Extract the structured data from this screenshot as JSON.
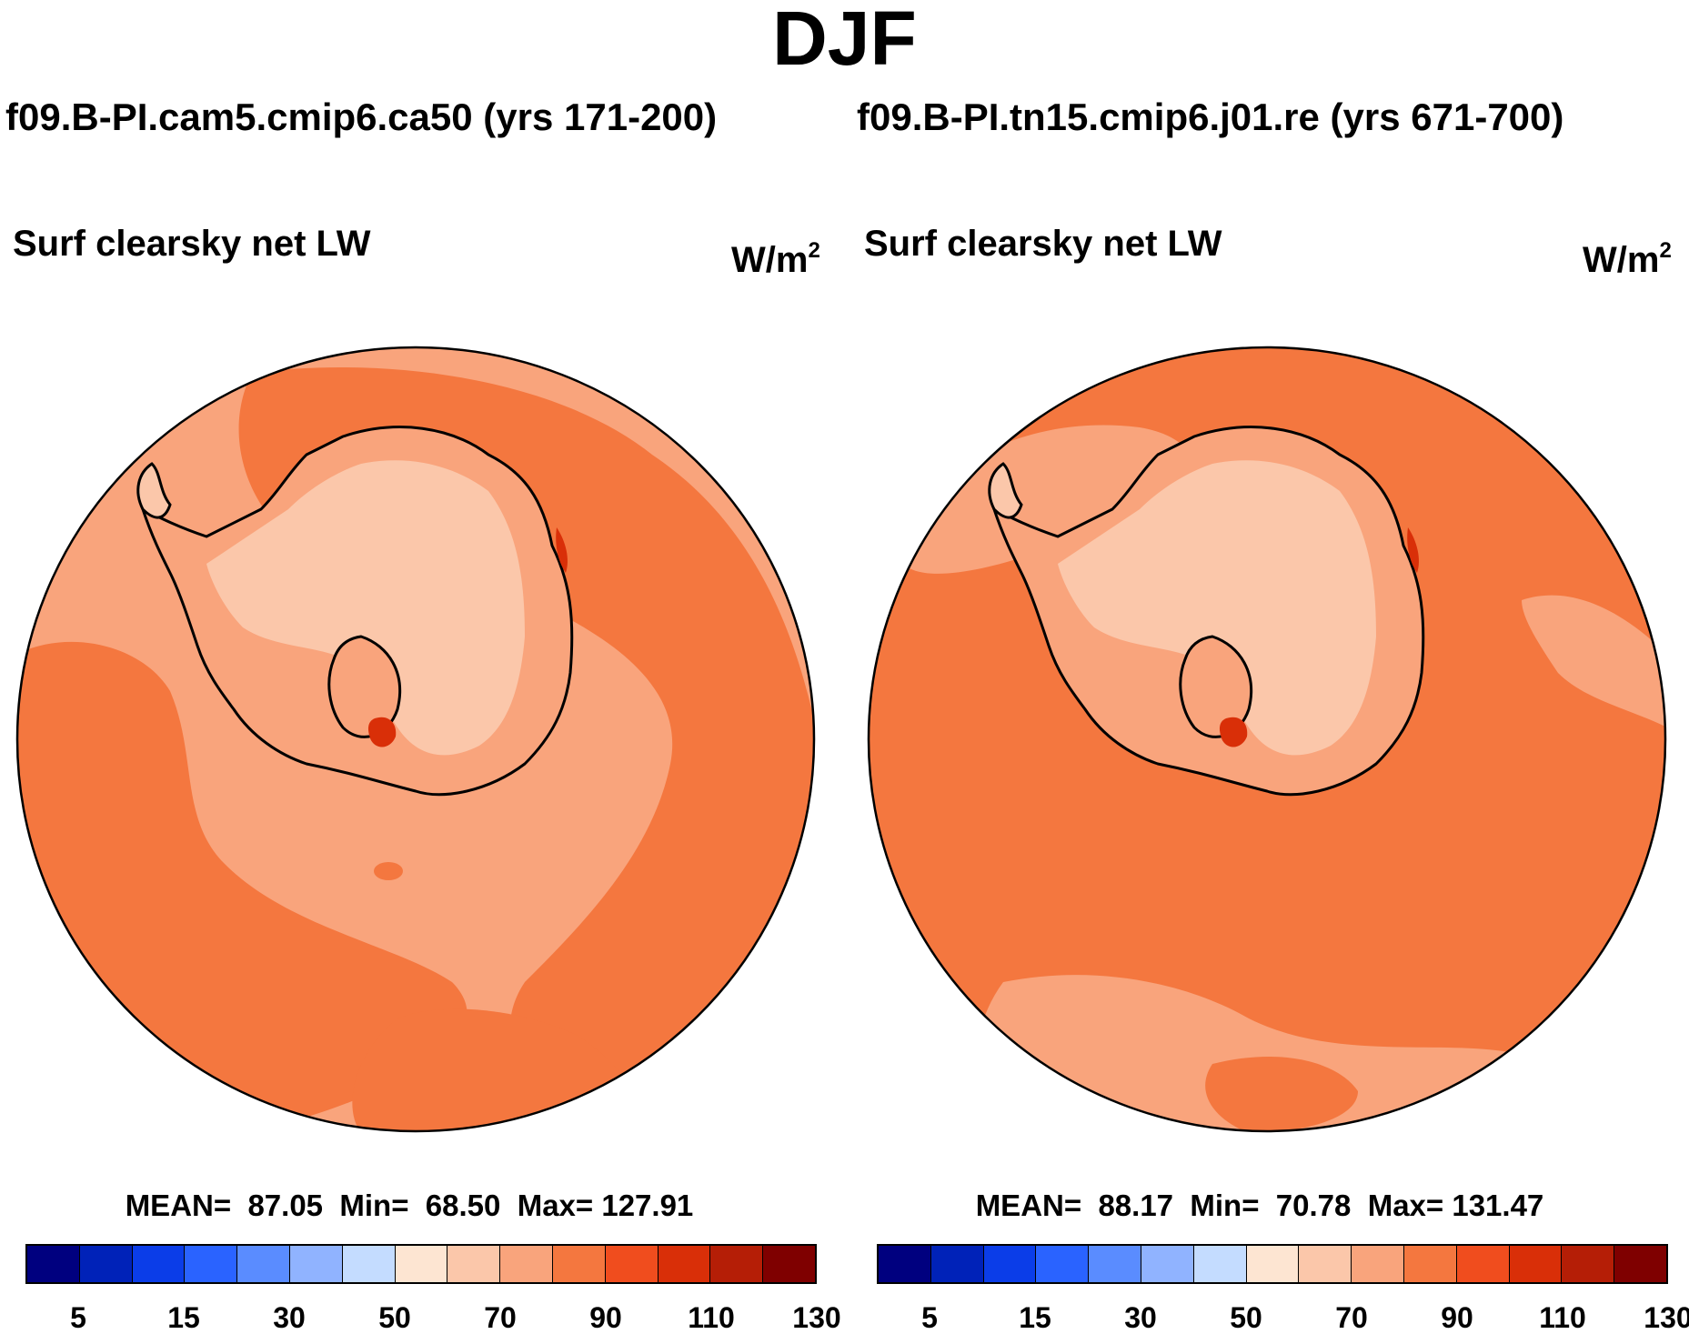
{
  "title": "DJF",
  "panels": [
    {
      "case": "f09.B-PI.cam5.cmip6.ca50 (yrs 171-200)",
      "variable": "Surf clearsky net LW",
      "units_base": "W/m",
      "units_exp": "2",
      "stats": "MEAN=  87.05  Min=  68.50  Max= 127.91"
    },
    {
      "case": "f09.B-PI.tn15.cmip6.j01.re (yrs 671-700)",
      "variable": "Surf clearsky net LW",
      "units_base": "W/m",
      "units_exp": "2",
      "stats": "MEAN=  88.17  Min=  70.78  Max= 131.47"
    }
  ],
  "colorbar": {
    "colors": [
      "#00007f",
      "#0022b8",
      "#0b3de8",
      "#2a63ff",
      "#5a8cff",
      "#90b3ff",
      "#c4dcff",
      "#fde5d2",
      "#fbc7aa",
      "#f9a47c",
      "#f4773f",
      "#f04d1e",
      "#d92f08",
      "#b51e06",
      "#7f0000"
    ],
    "tick_labels": [
      "5",
      "15",
      "30",
      "50",
      "70",
      "90",
      "110",
      "130"
    ]
  },
  "map_colors": {
    "ocean_high": "#f4773f",
    "ocean_mid": "#f9a47c",
    "land_low": "#fbc7aa",
    "land_mid": "#f9a47c",
    "hotspot": "#d92f08",
    "outline": "#000000"
  }
}
